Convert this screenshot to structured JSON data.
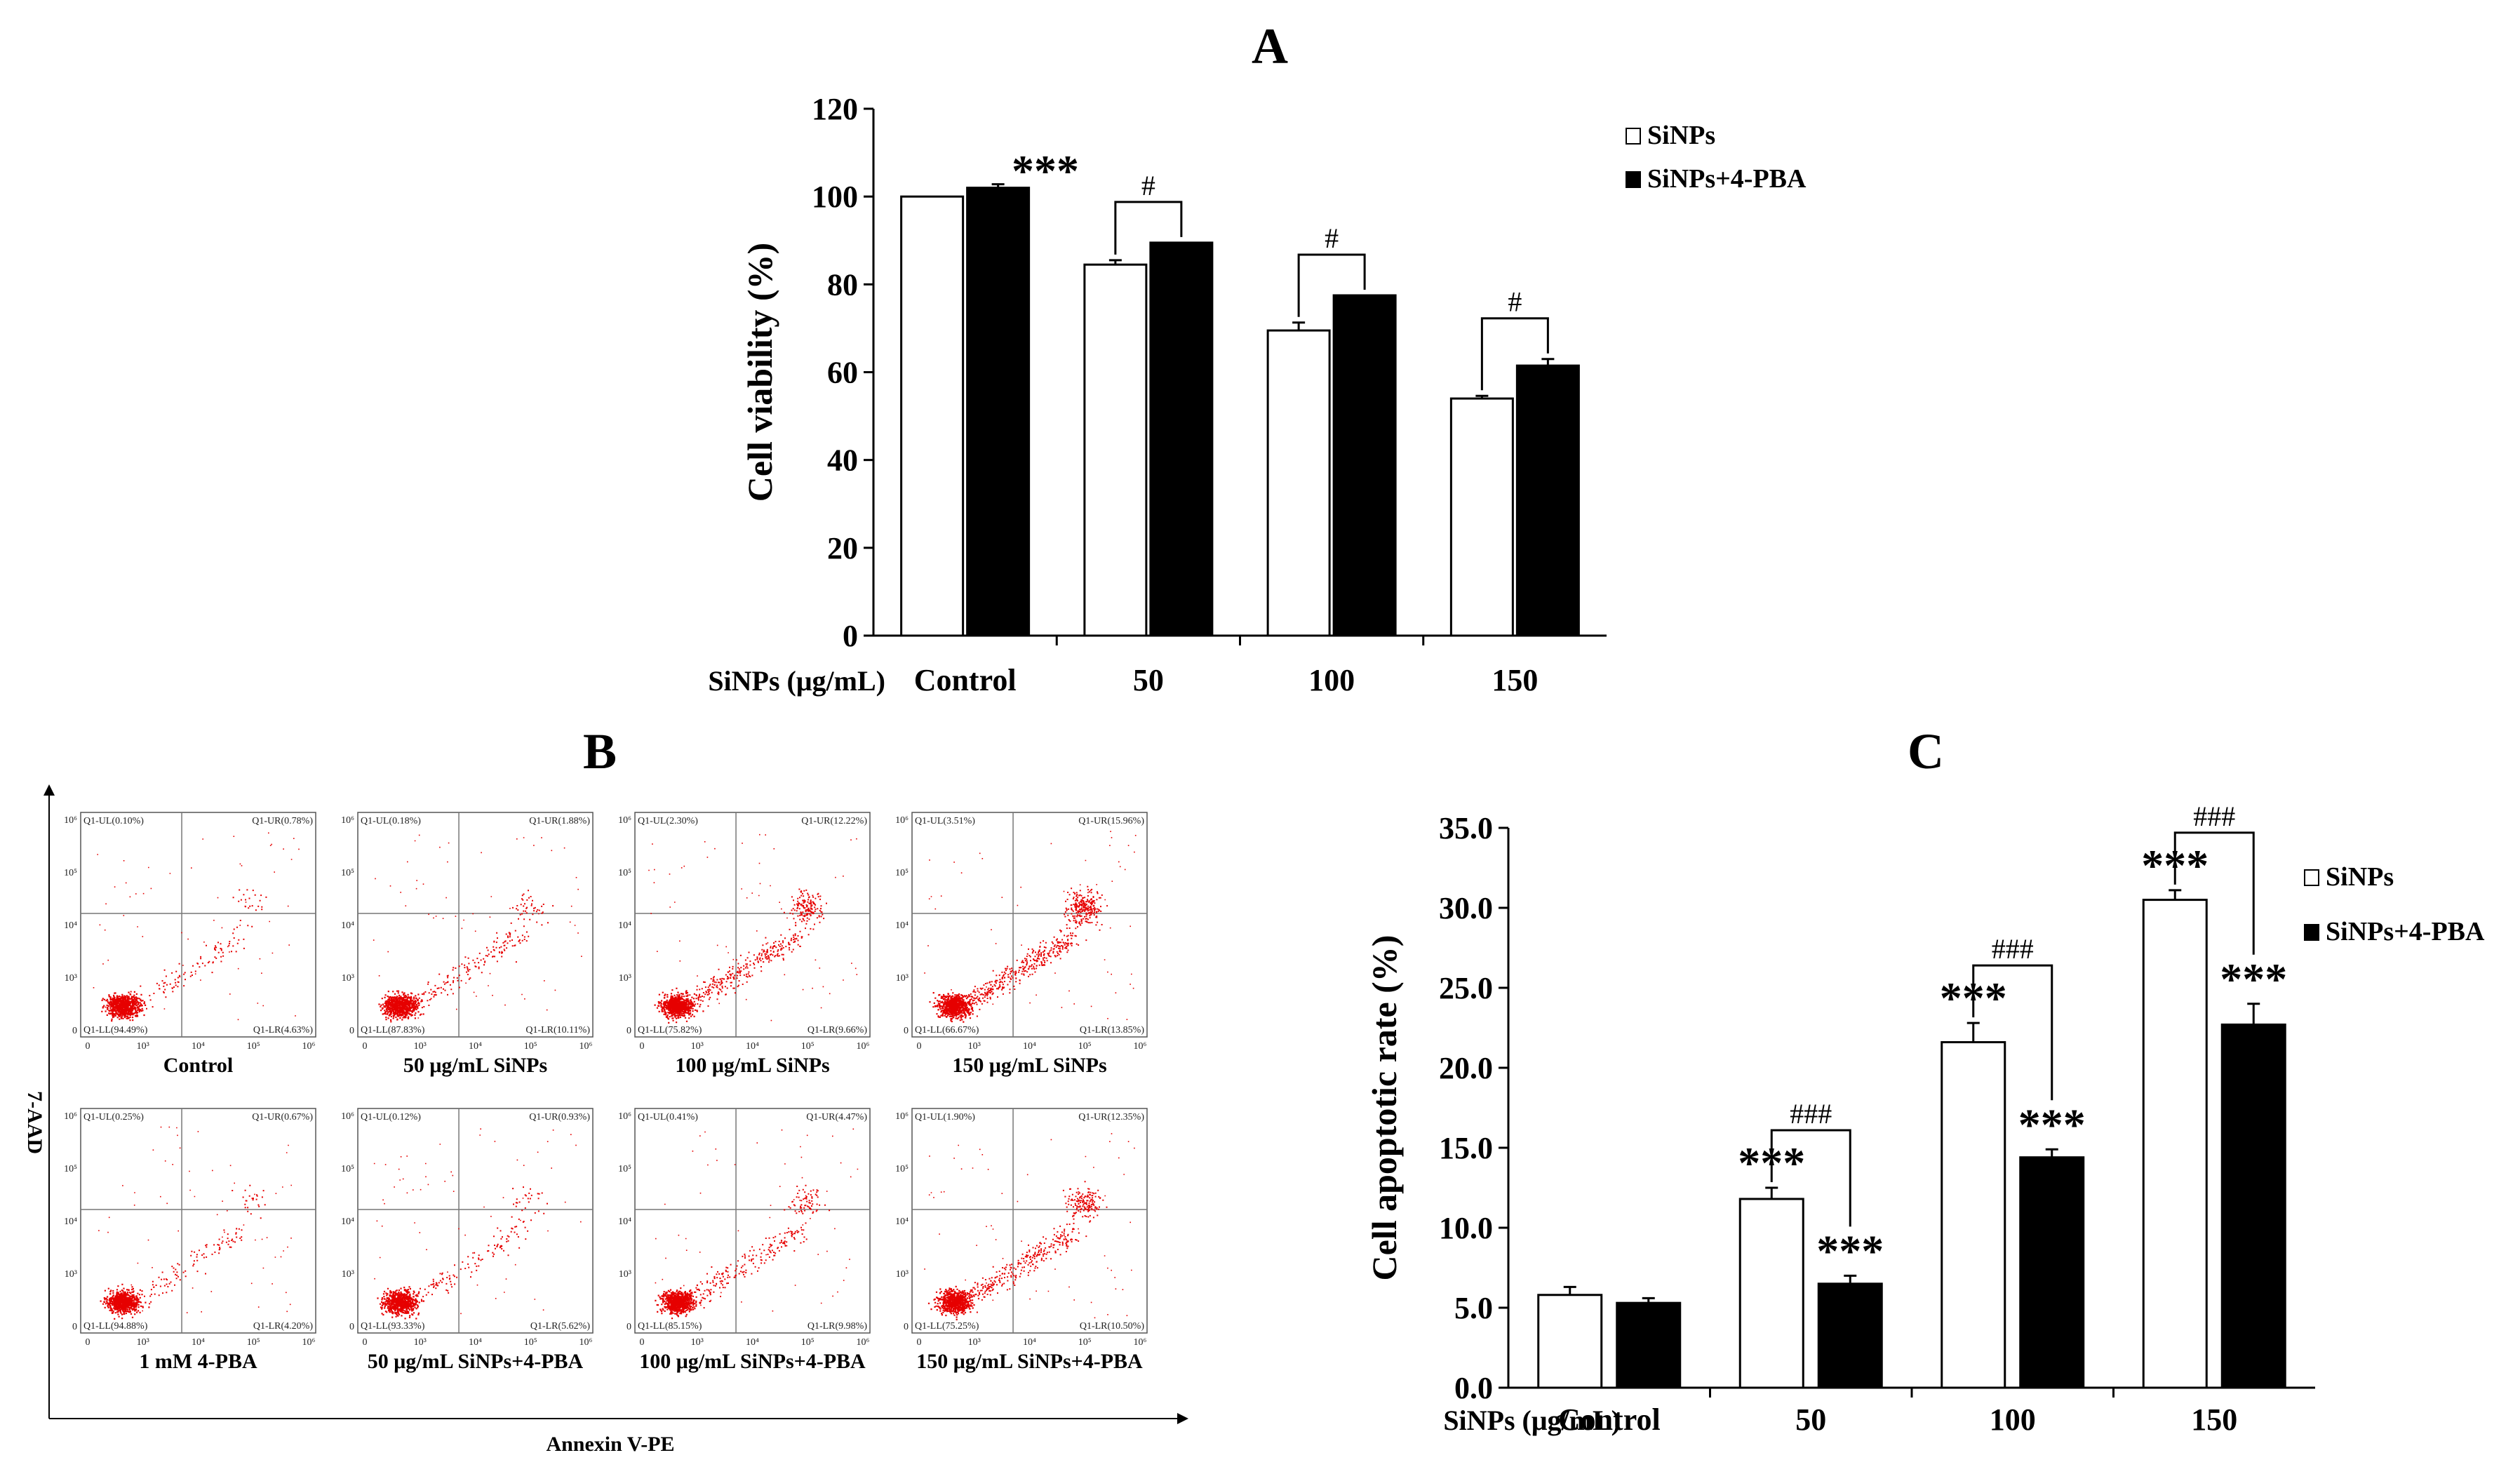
{
  "panels": {
    "a": "A",
    "b": "B",
    "c": "C"
  },
  "chart_data": [
    {
      "id": "A",
      "type": "bar",
      "ylabel": "Cell viability (%)",
      "xlabel_prefix": "SiNPs (μg/mL)",
      "categories": [
        "Control",
        "50",
        "100",
        "150"
      ],
      "ylim": [
        0,
        120
      ],
      "yticks": [
        "0",
        "20",
        "40",
        "60",
        "80",
        "100",
        "120"
      ],
      "legend_position": "top-right",
      "series": [
        {
          "name": "SiNPs",
          "color": "#ffffff",
          "values": [
            100,
            84.5,
            69.5,
            54
          ],
          "err": [
            0,
            1.0,
            1.8,
            0.6
          ]
        },
        {
          "name": "SiNPs+4-PBA",
          "color": "#000000",
          "values": [
            102,
            89.5,
            77.5,
            61.5
          ],
          "err": [
            0.8,
            0,
            0,
            1.5
          ]
        }
      ],
      "annotations": {
        "stars": "***",
        "hash": "#"
      }
    },
    {
      "id": "C",
      "type": "bar",
      "ylabel": "Cell apoptotic rate (%)",
      "xlabel_prefix": "SiNPs (μg/mL)",
      "categories": [
        "Control",
        "50",
        "100",
        "150"
      ],
      "ylim": [
        0,
        35
      ],
      "yticks": [
        "0.0",
        "5.0",
        "10.0",
        "15.0",
        "20.0",
        "25.0",
        "30.0",
        "35.0"
      ],
      "legend_position": "top-right",
      "series": [
        {
          "name": "SiNPs",
          "color": "#ffffff",
          "values": [
            5.8,
            11.8,
            21.6,
            30.5
          ],
          "err": [
            0.5,
            0.7,
            1.2,
            0.6
          ]
        },
        {
          "name": "SiNPs+4-PBA",
          "color": "#000000",
          "values": [
            5.3,
            6.5,
            14.4,
            22.7
          ],
          "err": [
            0.3,
            0.5,
            0.5,
            1.3
          ]
        }
      ],
      "annotations": {
        "stars": "***",
        "hash": "###"
      }
    }
  ],
  "flow": {
    "ylabel": "7-AAD",
    "xlabel": "Annexin V-PE",
    "tick_labels": [
      "0",
      "10³",
      "10⁴",
      "10⁵",
      "10⁶"
    ],
    "plots": [
      {
        "caption": "Control",
        "ul": "Q1-UL(0.10%)",
        "ur": "Q1-UR(0.78%)",
        "ll": "Q1-LL(94.49%)",
        "lr": "Q1-LR(4.63%)",
        "intensity": 0.1
      },
      {
        "caption": "50 μg/mL SiNPs",
        "ul": "Q1-UL(0.18%)",
        "ur": "Q1-UR(1.88%)",
        "ll": "Q1-LL(87.83%)",
        "lr": "Q1-LR(10.11%)",
        "intensity": 0.25
      },
      {
        "caption": "100 μg/mL SiNPs",
        "ul": "Q1-UL(2.30%)",
        "ur": "Q1-UR(12.22%)",
        "ll": "Q1-LL(75.82%)",
        "lr": "Q1-LR(9.66%)",
        "intensity": 0.6
      },
      {
        "caption": "150 μg/mL SiNPs",
        "ul": "Q1-UL(3.51%)",
        "ur": "Q1-UR(15.96%)",
        "ll": "Q1-LL(66.67%)",
        "lr": "Q1-LR(13.85%)",
        "intensity": 0.8
      },
      {
        "caption": "1 mM 4-PBA",
        "ul": "Q1-UL(0.25%)",
        "ur": "Q1-UR(0.67%)",
        "ll": "Q1-LL(94.88%)",
        "lr": "Q1-LR(4.20%)",
        "intensity": 0.1
      },
      {
        "caption": "50 μg/mL SiNPs+4-PBA",
        "ul": "Q1-UL(0.12%)",
        "ur": "Q1-UR(0.93%)",
        "ll": "Q1-LL(93.33%)",
        "lr": "Q1-LR(5.62%)",
        "intensity": 0.15
      },
      {
        "caption": "100 μg/mL SiNPs+4-PBA",
        "ul": "Q1-UL(0.41%)",
        "ur": "Q1-UR(4.47%)",
        "ll": "Q1-LL(85.15%)",
        "lr": "Q1-LR(9.98%)",
        "intensity": 0.35
      },
      {
        "caption": "150 μg/mL SiNPs+4-PBA",
        "ul": "Q1-UL(1.90%)",
        "ur": "Q1-UR(12.35%)",
        "ll": "Q1-LL(75.25%)",
        "lr": "Q1-LR(10.50%)",
        "intensity": 0.6
      }
    ]
  }
}
